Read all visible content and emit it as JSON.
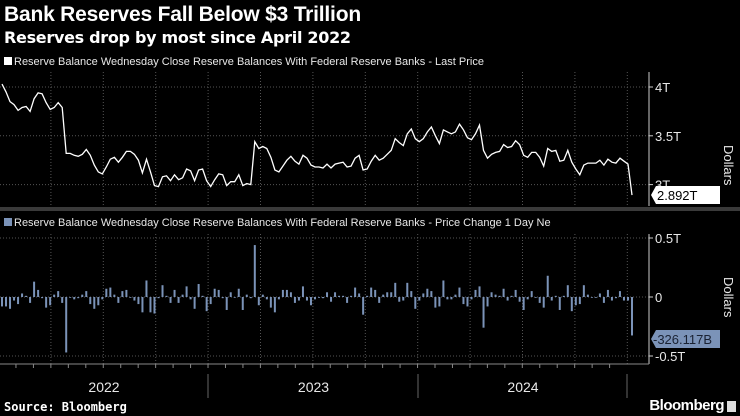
{
  "title": "Bank Reserves Fall Below $3 Trillion",
  "subtitle": "Reserves drop by most since April 2022",
  "source": "Source: Bloomberg",
  "brand": "Bloomberg",
  "colors": {
    "background": "#000000",
    "line": "#ffffff",
    "bars": "#7b93b8",
    "grid": "#555555"
  },
  "chart_data": [
    {
      "type": "line",
      "legend": "Reserve Balance Wednesday Close Reserve Balances With Federal Reserve Banks - Last Price",
      "ylabel": "Dollars",
      "y_unit": "T",
      "x_frequency": "weekly",
      "x_tick_labels": [
        "2022",
        "2023",
        "2024"
      ],
      "y_ticks": [
        {
          "value": 4,
          "label": "4T"
        },
        {
          "value": 3.5,
          "label": "3.5T"
        },
        {
          "value": 3,
          "label": "3T"
        }
      ],
      "ylim": [
        2.85,
        4.15
      ],
      "grid": true,
      "last_value_label": "2.892T",
      "values": [
        4.03,
        3.95,
        3.85,
        3.82,
        3.76,
        3.79,
        3.8,
        3.75,
        3.88,
        3.94,
        3.93,
        3.84,
        3.77,
        3.79,
        3.84,
        3.79,
        3.32,
        3.32,
        3.3,
        3.29,
        3.31,
        3.36,
        3.3,
        3.2,
        3.13,
        3.11,
        3.18,
        3.26,
        3.28,
        3.23,
        3.28,
        3.34,
        3.34,
        3.31,
        3.25,
        3.12,
        3.26,
        3.13,
        2.99,
        2.98,
        3.08,
        3.09,
        3.04,
        3.1,
        3.05,
        3.07,
        3.16,
        3.14,
        3.04,
        3.15,
        3.16,
        3.04,
        2.98,
        3.05,
        3.11,
        3.1,
        2.99,
        3.03,
        3.03,
        3.1,
        2.99,
        3.01,
        3.0,
        3.44,
        3.37,
        3.39,
        3.37,
        3.28,
        3.15,
        3.13,
        3.19,
        3.25,
        3.29,
        3.24,
        3.21,
        3.3,
        3.27,
        3.2,
        3.18,
        3.18,
        3.17,
        3.21,
        3.17,
        3.21,
        3.22,
        3.23,
        3.18,
        3.19,
        3.27,
        3.3,
        3.15,
        3.16,
        3.24,
        3.3,
        3.25,
        3.27,
        3.31,
        3.35,
        3.47,
        3.43,
        3.4,
        3.52,
        3.57,
        3.47,
        3.44,
        3.47,
        3.54,
        3.59,
        3.5,
        3.42,
        3.56,
        3.54,
        3.52,
        3.54,
        3.62,
        3.56,
        3.48,
        3.46,
        3.52,
        3.61,
        3.35,
        3.27,
        3.31,
        3.33,
        3.34,
        3.41,
        3.38,
        3.39,
        3.45,
        3.41,
        3.3,
        3.28,
        3.33,
        3.33,
        3.28,
        3.19,
        3.37,
        3.34,
        3.35,
        3.24,
        3.25,
        3.35,
        3.23,
        3.16,
        3.1,
        3.2,
        3.22,
        3.22,
        3.22,
        3.25,
        3.2,
        3.26,
        3.23,
        3.22,
        3.27,
        3.24,
        3.21,
        2.892
      ]
    },
    {
      "type": "bar",
      "legend": "Reserve Balance Wednesday Close Reserve Balances With Federal Reserve Banks - Price Change 1 Day Ne",
      "ylabel": "Dollars",
      "y_unit": "T",
      "x_frequency": "weekly",
      "x_tick_labels": [
        "2022",
        "2023",
        "2024"
      ],
      "y_ticks": [
        {
          "value": 0.5,
          "label": "0.5T"
        },
        {
          "value": 0,
          "label": "0"
        },
        {
          "value": -0.5,
          "label": "-0.5T"
        }
      ],
      "ylim": [
        -0.55,
        0.55
      ],
      "grid": true,
      "last_value_label": "-326.117B",
      "values": [
        -0.08,
        -0.08,
        -0.1,
        -0.03,
        -0.06,
        0.03,
        0.01,
        -0.05,
        0.13,
        0.06,
        -0.01,
        -0.09,
        -0.07,
        0.02,
        0.05,
        -0.05,
        -0.47,
        0,
        -0.02,
        -0.01,
        0.02,
        0.05,
        -0.06,
        -0.1,
        -0.07,
        -0.02,
        0.07,
        0.08,
        0.02,
        -0.05,
        0.05,
        0.06,
        0,
        -0.03,
        -0.06,
        -0.13,
        0.14,
        -0.13,
        -0.14,
        -0.01,
        0.1,
        0.01,
        -0.05,
        0.06,
        -0.05,
        0.02,
        0.09,
        -0.02,
        -0.1,
        0.11,
        0.01,
        -0.12,
        -0.06,
        0.07,
        0.06,
        -0.01,
        -0.11,
        0.04,
        0,
        0.07,
        -0.11,
        0.02,
        -0.01,
        0.44,
        -0.07,
        0.02,
        -0.02,
        -0.09,
        -0.13,
        -0.02,
        0.06,
        0.06,
        0.04,
        -0.05,
        -0.03,
        0.09,
        -0.03,
        -0.07,
        -0.02,
        0,
        -0.01,
        0.04,
        -0.04,
        0.04,
        0.01,
        0.01,
        -0.05,
        0.01,
        0.08,
        0.03,
        -0.15,
        0.01,
        0.08,
        0.06,
        -0.05,
        0.02,
        0.04,
        0.04,
        0.12,
        -0.04,
        -0.03,
        0.12,
        0.05,
        -0.1,
        -0.03,
        0.03,
        0.07,
        0.05,
        -0.09,
        -0.08,
        0.14,
        -0.02,
        -0.02,
        0.02,
        0.08,
        -0.06,
        -0.08,
        -0.02,
        0.06,
        0.09,
        -0.26,
        -0.08,
        0.04,
        0.02,
        0.01,
        0.07,
        -0.03,
        0.01,
        0.06,
        -0.04,
        -0.11,
        -0.02,
        0.05,
        0,
        -0.05,
        -0.09,
        0.18,
        -0.03,
        0.01,
        -0.11,
        0.01,
        0.1,
        -0.12,
        -0.07,
        -0.06,
        0.1,
        0.02,
        0,
        0,
        0.03,
        -0.05,
        0.06,
        -0.03,
        -0.01,
        0.05,
        -0.03,
        -0.03,
        -0.326
      ]
    }
  ]
}
